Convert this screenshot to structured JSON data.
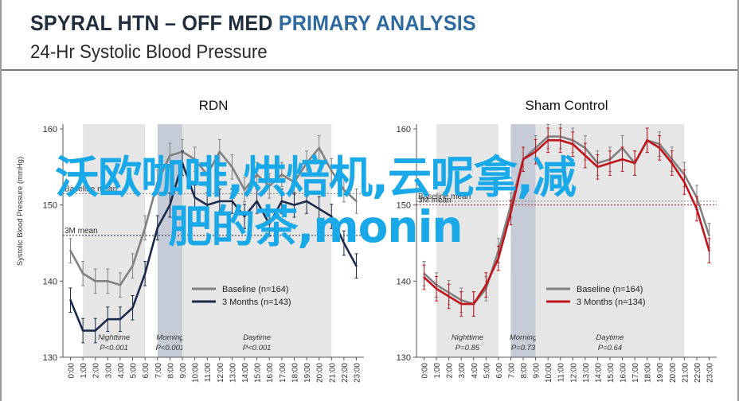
{
  "header": {
    "title_main": "SPYRAL HTN – OFF MED",
    "title_accent": "PRIMARY ANALYSIS",
    "subtitle": "24-Hr Systolic Blood Pressure"
  },
  "watermark": {
    "line1": "沃欧咖啡,烘焙机,云呢拿,减",
    "line2": "肥的茶,monin",
    "color": "#1aa9e8"
  },
  "colors": {
    "baseline": "#808080",
    "rdn_3m": "#1b2a4a",
    "sham_3m": "#c0141c",
    "shade": "#e6e6e6",
    "morning_shade": "#c5ccd8"
  },
  "chart_data": [
    {
      "type": "line",
      "title": "RDN",
      "ylabel": "Systolic  Blood Pressure (mmHg)",
      "ylim": [
        130,
        160
      ],
      "yticks": [
        130,
        140,
        150,
        160
      ],
      "x": [
        "0:00",
        "1:00",
        "2:00",
        "3:00",
        "4:00",
        "5:00",
        "6:00",
        "7:00",
        "8:00",
        "9:00",
        "10:00",
        "11:00",
        "12:00",
        "13:00",
        "14:00",
        "15:00",
        "16:00",
        "17:00",
        "18:00",
        "19:00",
        "20:00",
        "21:00",
        "22:00",
        "23:00"
      ],
      "series": [
        {
          "name": "Baseline (n=164)",
          "values": [
            144.0,
            141.0,
            140.0,
            140.0,
            139.5,
            142.0,
            147.0,
            153.0,
            156.5,
            157.0,
            156.0,
            154.0,
            157.0,
            155.0,
            152.0,
            154.0,
            152.5,
            154.0,
            153.0,
            155.5,
            157.5,
            154.5,
            152.0,
            150.5
          ]
        },
        {
          "name": "3 Months (n=143)",
          "values": [
            137.5,
            133.5,
            133.5,
            135.0,
            135.0,
            136.5,
            141.0,
            147.0,
            150.0,
            155.5,
            151.0,
            150.0,
            150.5,
            150.5,
            148.5,
            150.5,
            147.5,
            150.5,
            150.0,
            150.5,
            149.5,
            148.5,
            145.0,
            142.0
          ]
        }
      ],
      "baseline_mean_label": "Baseline mean",
      "baseline_mean": 151.5,
      "three_m_mean_label": "3M mean",
      "three_m_mean": 146.0,
      "periods": [
        {
          "name": "Nighttime",
          "p": "P<0.001",
          "from": "1:00",
          "to": "6:00"
        },
        {
          "name": "Morning",
          "p": "P<0.001",
          "from": "7:00",
          "to": "9:00"
        },
        {
          "name": "Daytime",
          "p": "P<0.001",
          "from": "9:00",
          "to": "21:00"
        }
      ]
    },
    {
      "type": "line",
      "title": "Sham Control",
      "ylim": [
        130,
        160
      ],
      "yticks": [
        130,
        140,
        150,
        160
      ],
      "x": [
        "0:00",
        "1:00",
        "2:00",
        "3:00",
        "4:00",
        "5:00",
        "6:00",
        "7:00",
        "8:00",
        "9:00",
        "10:00",
        "11:00",
        "12:00",
        "13:00",
        "14:00",
        "15:00",
        "16:00",
        "17:00",
        "18:00",
        "19:00",
        "20:00",
        "21:00",
        "22:00",
        "23:00"
      ],
      "series": [
        {
          "name": "Baseline (n=164)",
          "values": [
            141.0,
            139.5,
            138.5,
            137.5,
            137.0,
            139.0,
            144.0,
            150.0,
            156.0,
            157.5,
            159.0,
            159.0,
            158.5,
            157.5,
            155.5,
            156.0,
            157.5,
            155.5,
            158.5,
            158.0,
            156.0,
            154.0,
            151.0,
            146.0
          ]
        },
        {
          "name": "3 Months (n=134)",
          "values": [
            140.5,
            139.0,
            138.0,
            137.0,
            137.0,
            139.5,
            143.0,
            149.0,
            156.0,
            157.0,
            158.5,
            158.5,
            158.0,
            156.5,
            155.0,
            155.5,
            156.0,
            155.5,
            158.5,
            157.5,
            155.5,
            153.0,
            149.5,
            144.0
          ]
        }
      ],
      "baseline_mean_label": "Baseline mean",
      "baseline_mean": 150.5,
      "three_m_mean_label": "3M mean",
      "three_m_mean": 150.0,
      "periods": [
        {
          "name": "Nighttime",
          "p": "P=0.85",
          "from": "1:00",
          "to": "6:00"
        },
        {
          "name": "Morning",
          "p": "P=0.73",
          "from": "7:00",
          "to": "9:00"
        },
        {
          "name": "Daytime",
          "p": "P=0.64",
          "from": "9:00",
          "to": "21:00"
        }
      ]
    }
  ]
}
